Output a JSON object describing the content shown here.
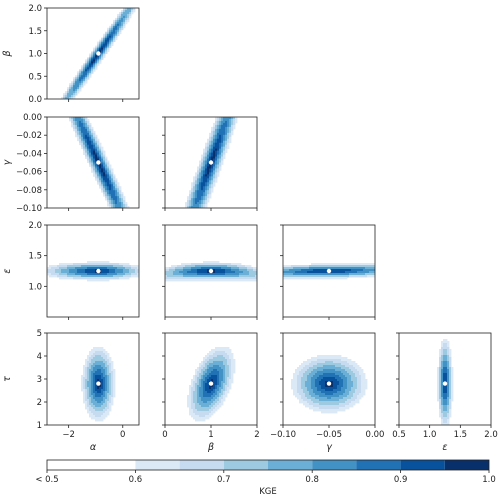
{
  "chart_data": {
    "type": "heatmap",
    "description_metric": "KGE",
    "parameters": [
      {
        "key": "alpha",
        "symbol": "α",
        "range": [
          -2.8,
          0.6
        ],
        "ticks": [
          -2,
          0
        ],
        "tick_labels": [
          "−2",
          "0"
        ]
      },
      {
        "key": "beta",
        "symbol": "β",
        "range": [
          0,
          2
        ],
        "ticks": [
          0,
          1,
          2
        ],
        "tick_labels": [
          "0",
          "1",
          "2"
        ]
      },
      {
        "key": "gamma",
        "symbol": "γ",
        "range": [
          -0.1,
          0.0
        ],
        "ticks": [
          -0.1,
          -0.05,
          0.0
        ],
        "tick_labels": [
          "−0.10",
          "−0.05",
          "0.00"
        ]
      },
      {
        "key": "epsilon",
        "symbol": "ε",
        "range": [
          0.5,
          2.0
        ],
        "ticks": [
          0.5,
          1.0,
          1.5,
          2.0
        ],
        "tick_labels": [
          "0.5",
          "1.0",
          "1.5",
          "2.0"
        ]
      },
      {
        "key": "tau",
        "symbol": "τ",
        "range": [
          1,
          5
        ],
        "ticks": [
          1,
          2,
          3,
          4,
          5
        ],
        "tick_labels": [
          "1",
          "2",
          "3",
          "4",
          "5"
        ]
      }
    ],
    "ylabel_ticks": {
      "beta": {
        "ticks": [
          0,
          0.5,
          1.0,
          1.5,
          2.0
        ],
        "tick_labels": [
          "0.0",
          "0.5",
          "1.0",
          "1.5",
          "2.0"
        ]
      },
      "gamma": {
        "ticks": [
          0,
          -0.02,
          -0.04,
          -0.06,
          -0.08,
          -0.1
        ],
        "tick_labels": [
          "0.00",
          "−0.02",
          "−0.04",
          "−0.06",
          "−0.08",
          "−0.10"
        ]
      },
      "epsilon": {
        "ticks": [
          1.0,
          1.5,
          2.0
        ],
        "tick_labels": [
          "1.0",
          "1.5",
          "2.0"
        ]
      },
      "tau": {
        "ticks": [
          1,
          2,
          3,
          4,
          5
        ],
        "tick_labels": [
          "1",
          "2",
          "3",
          "4",
          "5"
        ]
      }
    },
    "optimum": {
      "alpha": -0.9,
      "beta": 1.0,
      "gamma": -0.05,
      "epsilon": 1.25,
      "tau": 2.8
    },
    "panels": [
      {
        "x": "alpha",
        "y": "beta"
      },
      {
        "x": "alpha",
        "y": "gamma"
      },
      {
        "x": "beta",
        "y": "gamma"
      },
      {
        "x": "alpha",
        "y": "epsilon"
      },
      {
        "x": "beta",
        "y": "epsilon"
      },
      {
        "x": "gamma",
        "y": "epsilon"
      },
      {
        "x": "alpha",
        "y": "tau"
      },
      {
        "x": "beta",
        "y": "tau"
      },
      {
        "x": "gamma",
        "y": "tau"
      },
      {
        "x": "epsilon",
        "y": "tau"
      }
    ],
    "colorbar": {
      "label": "KGE",
      "levels": [
        0.5,
        0.6,
        0.65,
        0.7,
        0.75,
        0.8,
        0.85,
        0.9,
        0.95,
        1.0
      ],
      "colors": [
        "#ffffff",
        "#dbe9f6",
        "#c6dbef",
        "#9ecae1",
        "#6baed6",
        "#4292c6",
        "#2171b5",
        "#08519c",
        "#08306b"
      ],
      "tick_values": [
        0.5,
        0.6,
        0.7,
        0.8,
        0.9,
        1.0
      ],
      "tick_labels": [
        "< 0.5",
        "0.6",
        "0.7",
        "0.8",
        "0.9",
        "1.0"
      ]
    }
  }
}
